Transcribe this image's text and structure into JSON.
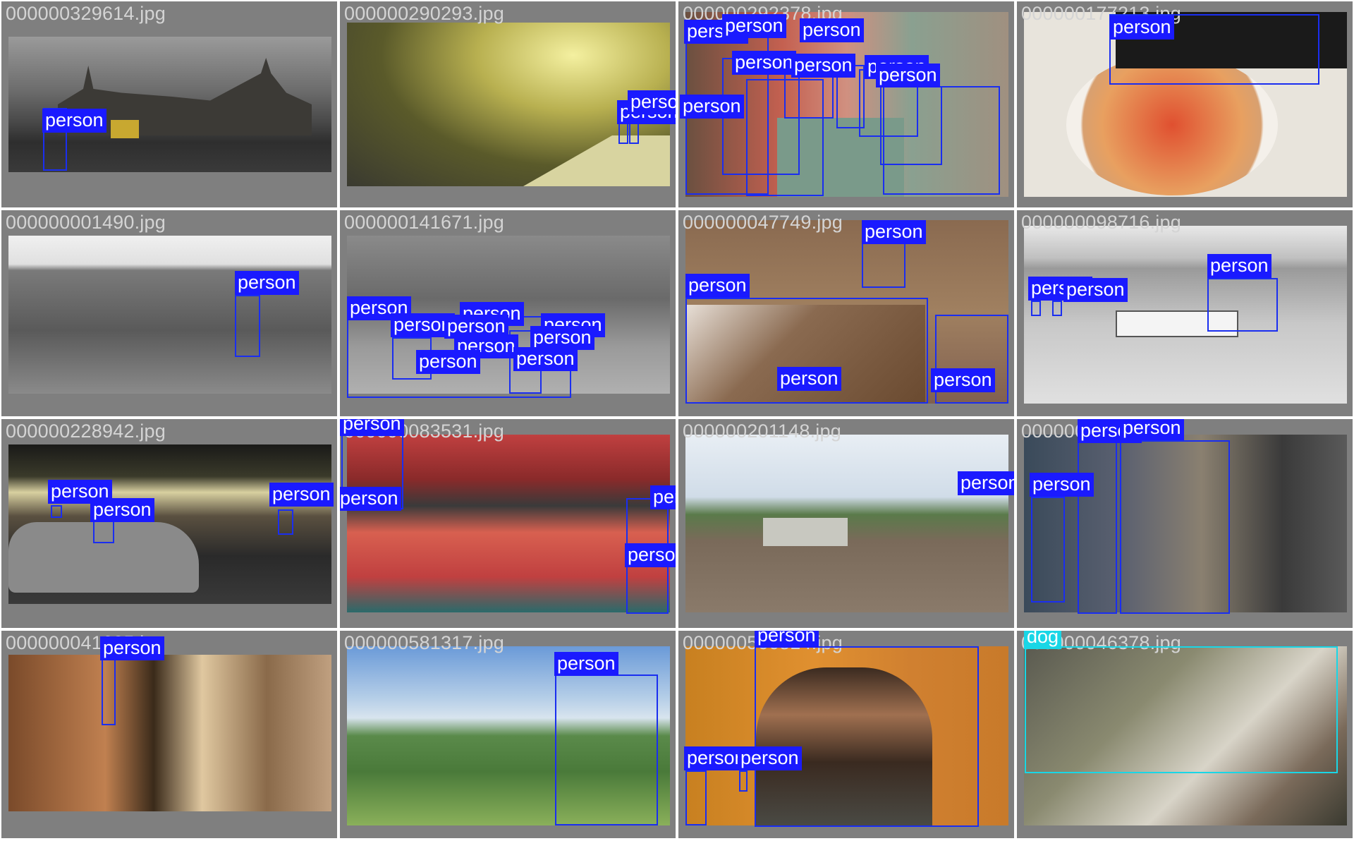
{
  "tiles": [
    {
      "filename": "000000329614.jpg",
      "labels": [
        "person"
      ]
    },
    {
      "filename": "000000290293.jpg",
      "labels": [
        "person",
        "person"
      ]
    },
    {
      "filename": "000000292378.jpg",
      "labels": [
        "person",
        "person",
        "person",
        "person",
        "person",
        "person",
        "person",
        "person"
      ]
    },
    {
      "filename": "000000177213.jpg",
      "labels": [
        "person"
      ]
    },
    {
      "filename": "000000001490.jpg",
      "labels": [
        "person"
      ]
    },
    {
      "filename": "000000141671.jpg",
      "labels": [
        "person",
        "person",
        "person",
        "person",
        "person",
        "person",
        "person",
        "person",
        "person"
      ]
    },
    {
      "filename": "000000047749.jpg",
      "labels": [
        "person",
        "person",
        "person",
        "person"
      ]
    },
    {
      "filename": "000000098716.jpg",
      "labels": [
        "person",
        "person",
        "person"
      ]
    },
    {
      "filename": "000000228942.jpg",
      "labels": [
        "person",
        "person",
        "person"
      ]
    },
    {
      "filename": "000000083531.jpg",
      "labels": [
        "person",
        "person",
        "person",
        "person"
      ]
    },
    {
      "filename": "000000201148.jpg",
      "labels": [
        "person"
      ]
    },
    {
      "filename": "000000172618.jpg",
      "labels": [
        "person",
        "person",
        "person"
      ]
    },
    {
      "filename": "000000041635.jpg",
      "labels": [
        "person"
      ]
    },
    {
      "filename": "000000581317.jpg",
      "labels": [
        "person"
      ]
    },
    {
      "filename": "000000566814.jpg",
      "labels": [
        "person",
        "person",
        "person"
      ]
    },
    {
      "filename": "000000046378.jpg",
      "labels": [
        "dog"
      ]
    }
  ],
  "colors": {
    "person": "#1a1aff",
    "dog": "#19d6e6",
    "tile_bg": "#7f7f7f"
  }
}
